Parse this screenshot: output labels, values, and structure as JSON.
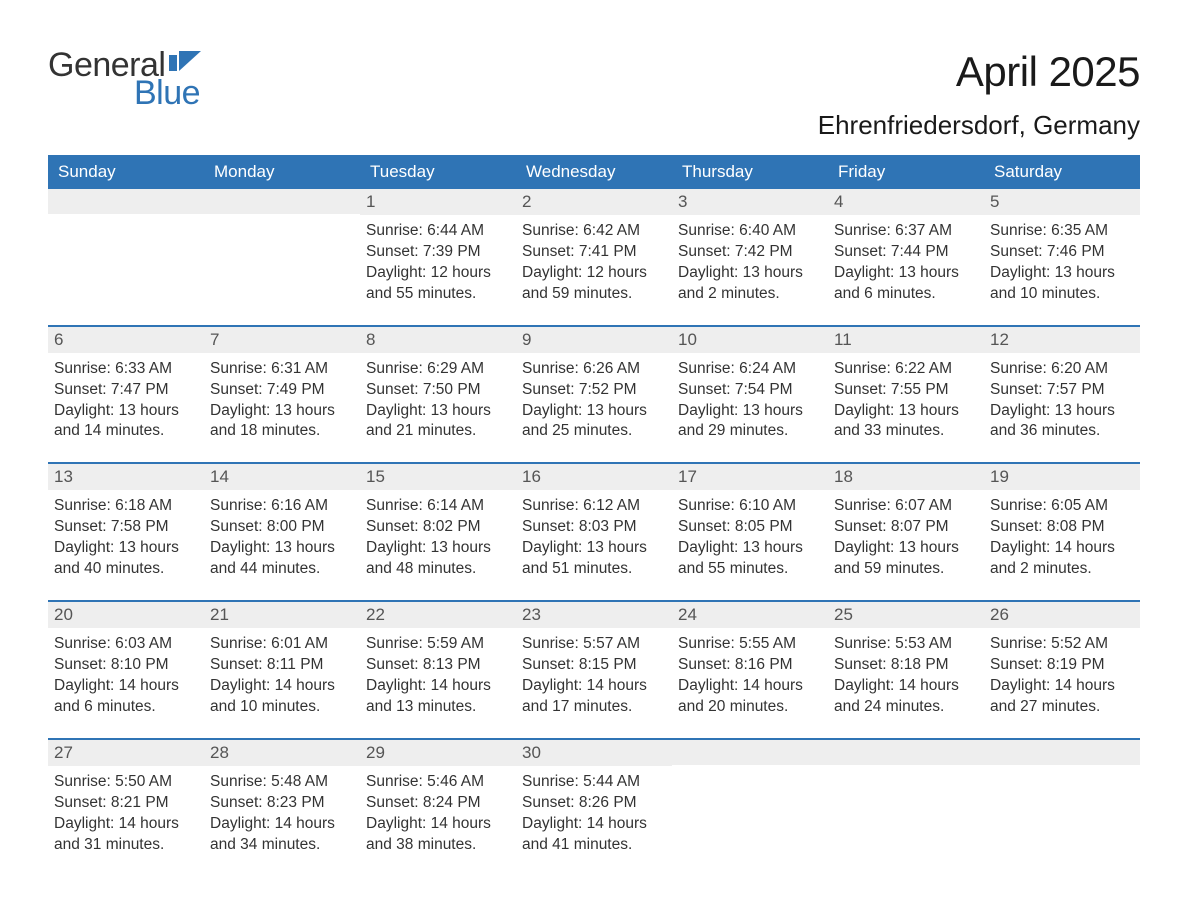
{
  "logo": {
    "word1": "General",
    "word2": "Blue",
    "word1_color": "#333333",
    "word2_color": "#2f74b5"
  },
  "title": "April 2025",
  "location": "Ehrenfriedersdorf, Germany",
  "colors": {
    "header_bg": "#2f74b5",
    "header_text": "#ffffff",
    "daynum_bg": "#eeeeee",
    "daynum_text": "#555555",
    "body_text": "#333333",
    "week_divider": "#2f74b5",
    "page_bg": "#ffffff"
  },
  "typography": {
    "month_title_fontsize": 42,
    "location_fontsize": 26,
    "header_fontsize": 17,
    "daynum_fontsize": 17,
    "body_fontsize": 15.5,
    "logo_fontsize": 34,
    "font_family": "Arial"
  },
  "layout": {
    "columns": 7,
    "column_labels_weight": "normal"
  },
  "weekdays": [
    "Sunday",
    "Monday",
    "Tuesday",
    "Wednesday",
    "Thursday",
    "Friday",
    "Saturday"
  ],
  "labels": {
    "sunrise": "Sunrise:",
    "sunset": "Sunset:",
    "daylight": "Daylight:"
  },
  "weeks": [
    [
      {
        "empty": true
      },
      {
        "empty": true
      },
      {
        "day": "1",
        "sunrise": "6:44 AM",
        "sunset": "7:39 PM",
        "daylight": "12 hours and 55 minutes."
      },
      {
        "day": "2",
        "sunrise": "6:42 AM",
        "sunset": "7:41 PM",
        "daylight": "12 hours and 59 minutes."
      },
      {
        "day": "3",
        "sunrise": "6:40 AM",
        "sunset": "7:42 PM",
        "daylight": "13 hours and 2 minutes."
      },
      {
        "day": "4",
        "sunrise": "6:37 AM",
        "sunset": "7:44 PM",
        "daylight": "13 hours and 6 minutes."
      },
      {
        "day": "5",
        "sunrise": "6:35 AM",
        "sunset": "7:46 PM",
        "daylight": "13 hours and 10 minutes."
      }
    ],
    [
      {
        "day": "6",
        "sunrise": "6:33 AM",
        "sunset": "7:47 PM",
        "daylight": "13 hours and 14 minutes."
      },
      {
        "day": "7",
        "sunrise": "6:31 AM",
        "sunset": "7:49 PM",
        "daylight": "13 hours and 18 minutes."
      },
      {
        "day": "8",
        "sunrise": "6:29 AM",
        "sunset": "7:50 PM",
        "daylight": "13 hours and 21 minutes."
      },
      {
        "day": "9",
        "sunrise": "6:26 AM",
        "sunset": "7:52 PM",
        "daylight": "13 hours and 25 minutes."
      },
      {
        "day": "10",
        "sunrise": "6:24 AM",
        "sunset": "7:54 PM",
        "daylight": "13 hours and 29 minutes."
      },
      {
        "day": "11",
        "sunrise": "6:22 AM",
        "sunset": "7:55 PM",
        "daylight": "13 hours and 33 minutes."
      },
      {
        "day": "12",
        "sunrise": "6:20 AM",
        "sunset": "7:57 PM",
        "daylight": "13 hours and 36 minutes."
      }
    ],
    [
      {
        "day": "13",
        "sunrise": "6:18 AM",
        "sunset": "7:58 PM",
        "daylight": "13 hours and 40 minutes."
      },
      {
        "day": "14",
        "sunrise": "6:16 AM",
        "sunset": "8:00 PM",
        "daylight": "13 hours and 44 minutes."
      },
      {
        "day": "15",
        "sunrise": "6:14 AM",
        "sunset": "8:02 PM",
        "daylight": "13 hours and 48 minutes."
      },
      {
        "day": "16",
        "sunrise": "6:12 AM",
        "sunset": "8:03 PM",
        "daylight": "13 hours and 51 minutes."
      },
      {
        "day": "17",
        "sunrise": "6:10 AM",
        "sunset": "8:05 PM",
        "daylight": "13 hours and 55 minutes."
      },
      {
        "day": "18",
        "sunrise": "6:07 AM",
        "sunset": "8:07 PM",
        "daylight": "13 hours and 59 minutes."
      },
      {
        "day": "19",
        "sunrise": "6:05 AM",
        "sunset": "8:08 PM",
        "daylight": "14 hours and 2 minutes."
      }
    ],
    [
      {
        "day": "20",
        "sunrise": "6:03 AM",
        "sunset": "8:10 PM",
        "daylight": "14 hours and 6 minutes."
      },
      {
        "day": "21",
        "sunrise": "6:01 AM",
        "sunset": "8:11 PM",
        "daylight": "14 hours and 10 minutes."
      },
      {
        "day": "22",
        "sunrise": "5:59 AM",
        "sunset": "8:13 PM",
        "daylight": "14 hours and 13 minutes."
      },
      {
        "day": "23",
        "sunrise": "5:57 AM",
        "sunset": "8:15 PM",
        "daylight": "14 hours and 17 minutes."
      },
      {
        "day": "24",
        "sunrise": "5:55 AM",
        "sunset": "8:16 PM",
        "daylight": "14 hours and 20 minutes."
      },
      {
        "day": "25",
        "sunrise": "5:53 AM",
        "sunset": "8:18 PM",
        "daylight": "14 hours and 24 minutes."
      },
      {
        "day": "26",
        "sunrise": "5:52 AM",
        "sunset": "8:19 PM",
        "daylight": "14 hours and 27 minutes."
      }
    ],
    [
      {
        "day": "27",
        "sunrise": "5:50 AM",
        "sunset": "8:21 PM",
        "daylight": "14 hours and 31 minutes."
      },
      {
        "day": "28",
        "sunrise": "5:48 AM",
        "sunset": "8:23 PM",
        "daylight": "14 hours and 34 minutes."
      },
      {
        "day": "29",
        "sunrise": "5:46 AM",
        "sunset": "8:24 PM",
        "daylight": "14 hours and 38 minutes."
      },
      {
        "day": "30",
        "sunrise": "5:44 AM",
        "sunset": "8:26 PM",
        "daylight": "14 hours and 41 minutes."
      },
      {
        "empty": true
      },
      {
        "empty": true
      },
      {
        "empty": true
      }
    ]
  ]
}
